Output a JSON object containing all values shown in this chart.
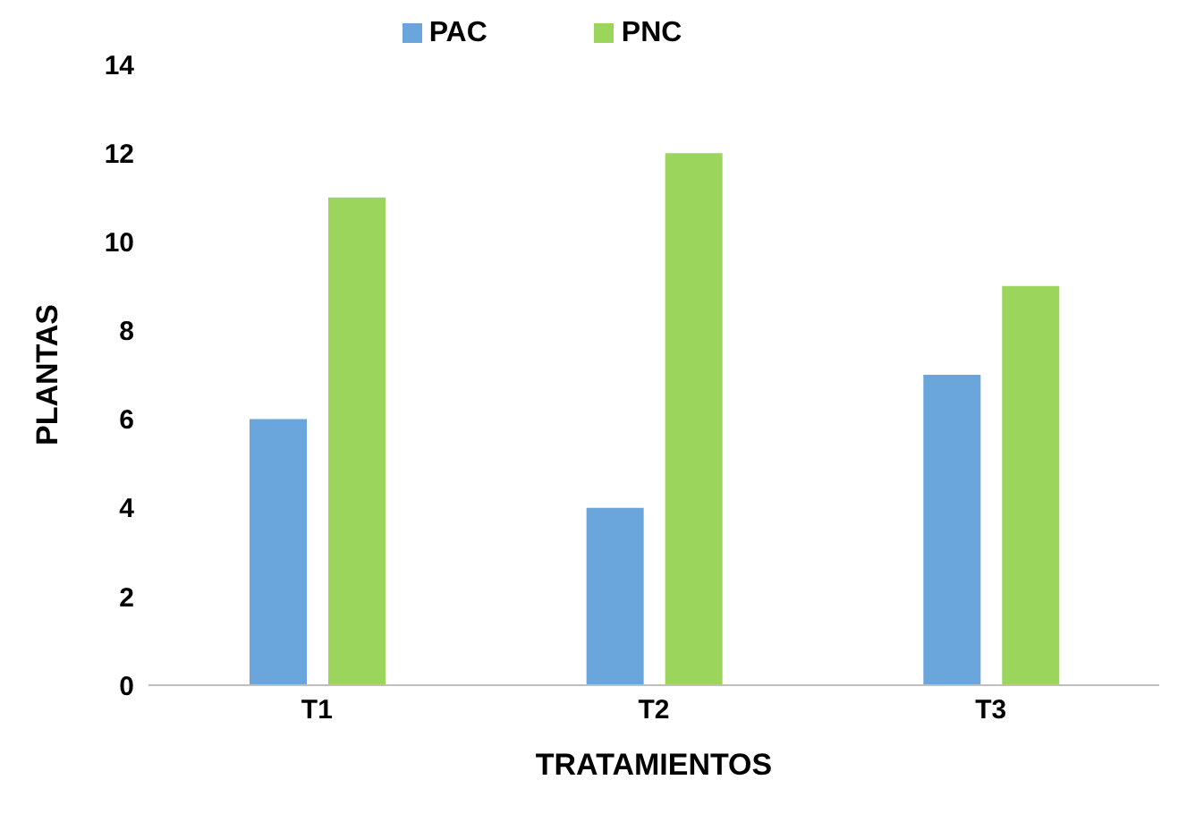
{
  "chart_data": {
    "type": "bar",
    "xlabel": "TRATAMIENTOS",
    "ylabel": "PLANTAS",
    "categories": [
      "T1",
      "T2",
      "T3"
    ],
    "series": [
      {
        "name": "PAC",
        "color": "#6aa5dc",
        "values": [
          6,
          4,
          7
        ]
      },
      {
        "name": "PNC",
        "color": "#9bd55b",
        "values": [
          11,
          12,
          9
        ]
      }
    ],
    "ylim": [
      0,
      14
    ],
    "yticks": [
      0,
      2,
      4,
      6,
      8,
      10,
      12,
      14
    ],
    "grid": false,
    "legend": "top"
  }
}
